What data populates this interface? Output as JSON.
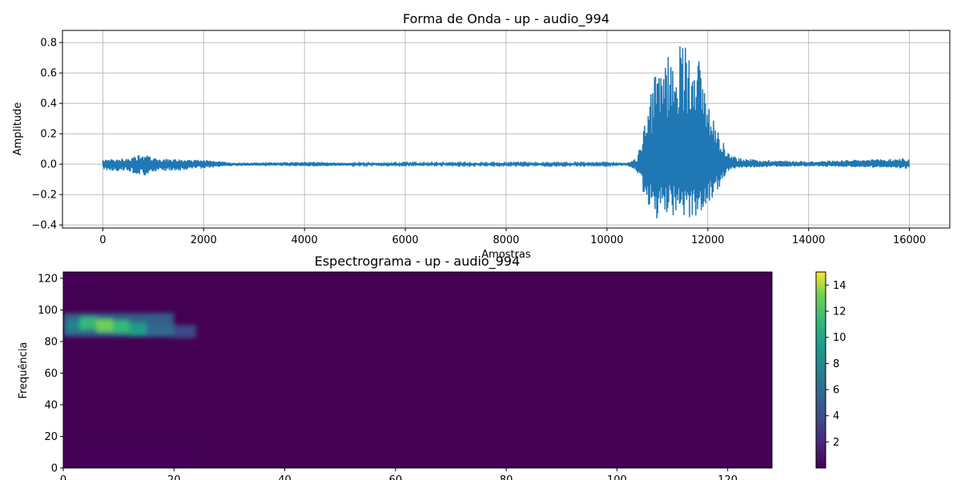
{
  "chart_data": [
    {
      "type": "line",
      "title": "Forma de Onda - up - audio_994",
      "xlabel": "Amostras",
      "ylabel": "Amplitude",
      "xlim": [
        -800,
        16800
      ],
      "ylim": [
        -0.42,
        0.88
      ],
      "grid": true,
      "line_color": "#1f77b4",
      "xticks": [
        0,
        2000,
        4000,
        6000,
        8000,
        10000,
        12000,
        14000,
        16000
      ],
      "yticks": [
        -0.4,
        -0.2,
        0.0,
        0.2,
        0.4,
        0.6,
        0.8
      ],
      "xtick_labels": [
        "0",
        "2000",
        "4000",
        "6000",
        "8000",
        "10000",
        "12000",
        "14000",
        "16000"
      ],
      "ytick_labels": [
        "−0.4",
        "−0.2",
        "0.0",
        "0.2",
        "0.4",
        "0.6",
        "0.8"
      ],
      "envelope": {
        "x": [
          0,
          500,
          800,
          1000,
          1600,
          2000,
          2600,
          3000,
          4200,
          4800,
          6000,
          7000,
          8000,
          9000,
          10000,
          10400,
          10600,
          10800,
          11000,
          11200,
          11400,
          11600,
          11700,
          11800,
          12000,
          12200,
          12400,
          12600,
          13000,
          14000,
          15000,
          16000
        ],
        "max": [
          0.03,
          0.04,
          0.07,
          0.04,
          0.03,
          0.03,
          0.01,
          0.01,
          0.015,
          0.01,
          0.008,
          0.008,
          0.008,
          0.007,
          0.008,
          0.01,
          0.04,
          0.35,
          0.66,
          0.73,
          0.78,
          0.83,
          0.83,
          0.75,
          0.43,
          0.24,
          0.08,
          0.04,
          0.03,
          0.02,
          0.03,
          0.04
        ],
        "min": [
          -0.04,
          -0.05,
          -0.08,
          -0.05,
          -0.04,
          -0.03,
          -0.01,
          -0.01,
          -0.015,
          -0.01,
          -0.008,
          -0.008,
          -0.008,
          -0.007,
          -0.008,
          -0.01,
          -0.05,
          -0.3,
          -0.36,
          -0.33,
          -0.35,
          -0.36,
          -0.37,
          -0.32,
          -0.3,
          -0.17,
          -0.05,
          -0.03,
          -0.02,
          -0.015,
          -0.02,
          -0.03
        ]
      }
    },
    {
      "type": "heatmap",
      "title": "Espectrograma - up - audio_994",
      "xlabel": "",
      "ylabel": "Frequência",
      "xlim": [
        0,
        128
      ],
      "ylim": [
        0,
        124
      ],
      "xticks": [
        0,
        20,
        40,
        60,
        80,
        100,
        120
      ],
      "yticks": [
        0,
        20,
        40,
        60,
        80,
        100,
        120
      ],
      "xtick_labels": [
        "0",
        "20",
        "40",
        "60",
        "80",
        "100",
        "120"
      ],
      "ytick_labels": [
        "0",
        "20",
        "40",
        "60",
        "80",
        "100",
        "120"
      ],
      "colormap": "viridis",
      "colorbar": {
        "range": [
          0,
          15
        ],
        "ticks": [
          2,
          4,
          6,
          8,
          10,
          12,
          14
        ],
        "tick_labels": [
          "2",
          "4",
          "6",
          "8",
          "10",
          "12",
          "14"
        ]
      },
      "hotspots": [
        {
          "x": [
            0,
            20
          ],
          "y": [
            83,
            98
          ],
          "peak": 14
        },
        {
          "x": [
            0,
            24
          ],
          "y": [
            0,
            18
          ],
          "peak": 2
        },
        {
          "x": [
            0,
            6
          ],
          "y": [
            115,
            124
          ],
          "peak": 1.5
        }
      ]
    }
  ]
}
